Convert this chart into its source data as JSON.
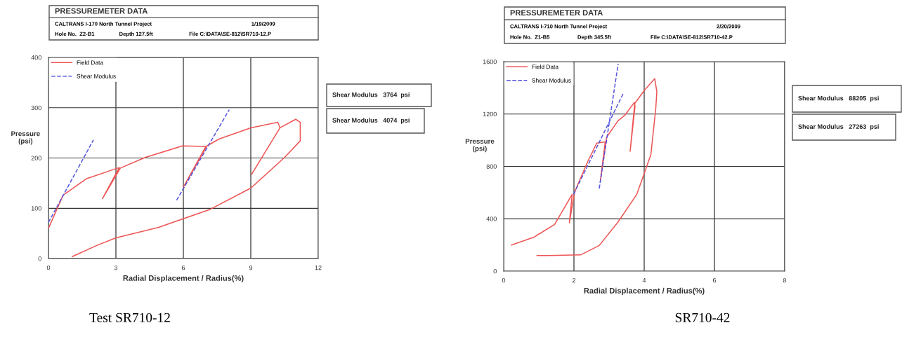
{
  "chart_data": [
    {
      "type": "line",
      "title": "PRESSUREMETER DATA",
      "xlabel": "Radial Displacement / Radius(%)",
      "ylabel": "Pressure\n(psi)",
      "xlim": [
        0,
        12
      ],
      "xticks": [
        0,
        3,
        6,
        9,
        12
      ],
      "ylim": [
        0,
        400
      ],
      "yticks": [
        0,
        100,
        200,
        300,
        400
      ],
      "grid": true,
      "legend": "top left",
      "marker": "none",
      "series": [
        {
          "name": "Field Data",
          "color": "#ee5555",
          "line_style": "solid",
          "x": [
            0,
            0.65,
            1.7,
            3.15,
            2.4,
            3.2,
            4.3,
            5.95,
            7.0,
            6.0,
            7.05,
            7.6,
            9.0,
            10.2,
            10.3,
            9.03,
            10.3,
            11.0,
            11.2,
            11.2,
            10.5,
            9.0,
            7.2,
            4.9,
            3.0,
            2.2,
            1.06
          ],
          "values": [
            60,
            126,
            159,
            181,
            119,
            180,
            201,
            224,
            223,
            142,
            224,
            238,
            260,
            271,
            260,
            167,
            260,
            277,
            271,
            234,
            201,
            140,
            98,
            62,
            41,
            27,
            4
          ]
        },
        {
          "name": "Shear Modulus",
          "color": "#5555dd",
          "line_style": "dashed",
          "x": [
            0,
            2.0,
            null,
            5.7,
            8.04
          ],
          "values": [
            72,
            236,
            null,
            116,
            296
          ]
        }
      ],
      "annotations": [
        "CALTRANS I-170 North Tunnel Project",
        "1/19/2009",
        "Hole No.  Z2-B1",
        "Depth 127.5ft",
        "File C:\\DATA\\SE-812\\SR710-12.P",
        "Shear Modulus   3764  psi",
        "Shear Modulus   4074  psi",
        "Test SR710-12"
      ]
    },
    {
      "type": "line",
      "title": "PRESSUREMETER DATA",
      "xlabel": "Radial Displacement / Radius(%)",
      "ylabel": "Pressure\n(psi)",
      "xlim": [
        0,
        8
      ],
      "xticks": [
        0,
        2,
        4,
        6,
        8
      ],
      "ylim": [
        0,
        1600
      ],
      "yticks": [
        0,
        400,
        800,
        1200,
        1600
      ],
      "grid": true,
      "legend": "top left",
      "marker": "none",
      "series": [
        {
          "name": "Field Data",
          "color": "#ee5555",
          "line_style": "solid",
          "x": [
            0.22,
            0.85,
            1.45,
            1.95,
            1.87,
            2.02,
            2.39,
            2.65,
            2.89,
            2.75,
            2.93,
            3.25,
            3.45,
            3.72,
            3.74,
            3.6,
            3.73,
            4.0,
            4.3,
            4.36,
            4.33,
            4.19,
            3.79,
            3.25,
            2.72,
            2.19,
            1.25,
            0.95
          ],
          "values": [
            199,
            258,
            356,
            587,
            370,
            604,
            836,
            978,
            987,
            684,
            1022,
            1147,
            1191,
            1289,
            1262,
            916,
            1280,
            1379,
            1470,
            1371,
            1244,
            889,
            587,
            373,
            196,
            124,
            119,
            119
          ]
        },
        {
          "name": "Shear Modulus",
          "color": "#5555dd",
          "line_style": "dashed",
          "x": [
            1.99,
            3.41,
            null,
            2.72,
            3.26
          ],
          "values": [
            587,
            1360,
            null,
            631,
            1584
          ]
        }
      ],
      "annotations": [
        "CALTRANS I-710 North Tunnel Project",
        "2/20/2009",
        "Hole No.  Z1-B5",
        "Depth 345.5ft",
        "File C:\\DATA\\SE-812\\SR710-42.P",
        "Shear Modulus   88205  psi",
        "Shear Modulus   27263  psi",
        "SR710-42"
      ]
    }
  ]
}
